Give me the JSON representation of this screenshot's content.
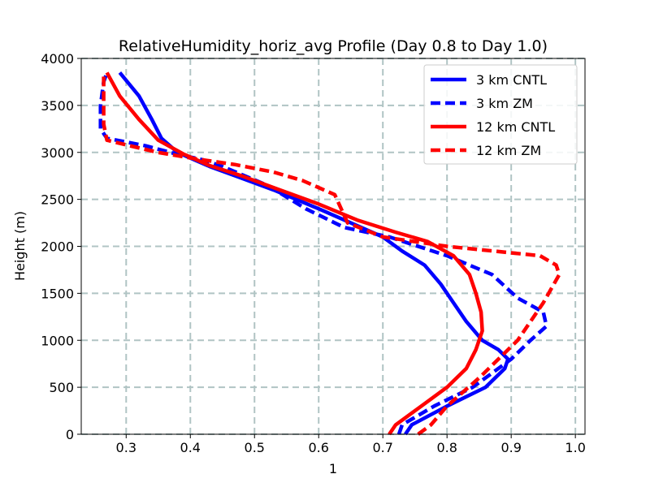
{
  "chart_data": {
    "type": "line",
    "title": "RelativeHumidity_horiz_avg Profile (Day 0.8 to Day 1.0)",
    "xlabel": "1",
    "ylabel": "Height (m)",
    "xlim": [
      0.23,
      1.015
    ],
    "ylim": [
      0,
      4000
    ],
    "xticks": [
      "0.3",
      "0.4",
      "0.5",
      "0.6",
      "0.7",
      "0.8",
      "0.9",
      "1.0"
    ],
    "yticks": [
      "0",
      "500",
      "1000",
      "1500",
      "2000",
      "2500",
      "3000",
      "3500",
      "4000"
    ],
    "grid": true,
    "legend_position": "top-right",
    "series": [
      {
        "name": "3 km CNTL",
        "color": "#0000ff",
        "dash": "solid",
        "points": [
          [
            0.735,
            0
          ],
          [
            0.745,
            100
          ],
          [
            0.8,
            300
          ],
          [
            0.86,
            500
          ],
          [
            0.89,
            700
          ],
          [
            0.895,
            800
          ],
          [
            0.88,
            900
          ],
          [
            0.855,
            1000
          ],
          [
            0.83,
            1200
          ],
          [
            0.81,
            1400
          ],
          [
            0.79,
            1600
          ],
          [
            0.765,
            1800
          ],
          [
            0.73,
            1950
          ],
          [
            0.7,
            2100
          ],
          [
            0.65,
            2250
          ],
          [
            0.6,
            2400
          ],
          [
            0.53,
            2600
          ],
          [
            0.47,
            2750
          ],
          [
            0.43,
            2850
          ],
          [
            0.38,
            3000
          ],
          [
            0.355,
            3150
          ],
          [
            0.34,
            3350
          ],
          [
            0.32,
            3600
          ],
          [
            0.29,
            3850
          ]
        ]
      },
      {
        "name": "3 km ZM",
        "color": "#0000ff",
        "dash": "dashed",
        "points": [
          [
            0.725,
            0
          ],
          [
            0.73,
            100
          ],
          [
            0.78,
            300
          ],
          [
            0.84,
            500
          ],
          [
            0.9,
            800
          ],
          [
            0.93,
            1000
          ],
          [
            0.955,
            1150
          ],
          [
            0.95,
            1300
          ],
          [
            0.91,
            1450
          ],
          [
            0.87,
            1700
          ],
          [
            0.8,
            1900
          ],
          [
            0.71,
            2100
          ],
          [
            0.64,
            2200
          ],
          [
            0.58,
            2400
          ],
          [
            0.52,
            2650
          ],
          [
            0.45,
            2850
          ],
          [
            0.42,
            2920
          ],
          [
            0.38,
            2980
          ],
          [
            0.33,
            3070
          ],
          [
            0.27,
            3150
          ],
          [
            0.26,
            3250
          ],
          [
            0.26,
            3500
          ],
          [
            0.265,
            3750
          ],
          [
            0.27,
            3850
          ]
        ]
      },
      {
        "name": "12 km CNTL",
        "color": "#ff0000",
        "dash": "solid",
        "points": [
          [
            0.71,
            0
          ],
          [
            0.72,
            100
          ],
          [
            0.76,
            300
          ],
          [
            0.8,
            500
          ],
          [
            0.83,
            700
          ],
          [
            0.845,
            900
          ],
          [
            0.855,
            1100
          ],
          [
            0.853,
            1300
          ],
          [
            0.845,
            1500
          ],
          [
            0.835,
            1700
          ],
          [
            0.81,
            1900
          ],
          [
            0.77,
            2050
          ],
          [
            0.72,
            2150
          ],
          [
            0.66,
            2280
          ],
          [
            0.6,
            2450
          ],
          [
            0.54,
            2600
          ],
          [
            0.48,
            2750
          ],
          [
            0.43,
            2860
          ],
          [
            0.39,
            2980
          ],
          [
            0.35,
            3130
          ],
          [
            0.32,
            3350
          ],
          [
            0.29,
            3600
          ],
          [
            0.27,
            3850
          ]
        ]
      },
      {
        "name": "12 km ZM",
        "color": "#ff0000",
        "dash": "dashed",
        "points": [
          [
            0.755,
            0
          ],
          [
            0.775,
            100
          ],
          [
            0.8,
            300
          ],
          [
            0.85,
            600
          ],
          [
            0.91,
            1000
          ],
          [
            0.95,
            1400
          ],
          [
            0.975,
            1700
          ],
          [
            0.97,
            1800
          ],
          [
            0.945,
            1900
          ],
          [
            0.8,
            2000
          ],
          [
            0.7,
            2100
          ],
          [
            0.645,
            2250
          ],
          [
            0.625,
            2550
          ],
          [
            0.575,
            2700
          ],
          [
            0.53,
            2790
          ],
          [
            0.47,
            2870
          ],
          [
            0.41,
            2930
          ],
          [
            0.35,
            3000
          ],
          [
            0.3,
            3080
          ],
          [
            0.27,
            3130
          ],
          [
            0.265,
            3300
          ],
          [
            0.265,
            3600
          ],
          [
            0.265,
            3850
          ]
        ]
      }
    ]
  }
}
